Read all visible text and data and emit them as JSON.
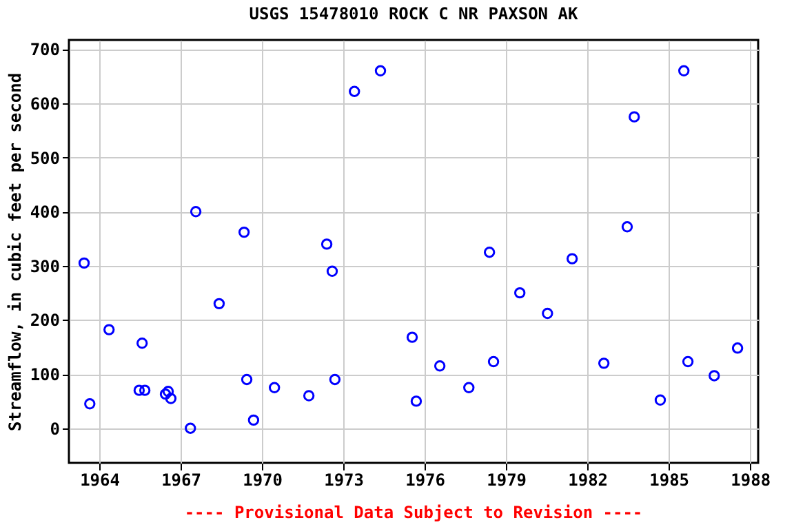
{
  "chart_data": {
    "type": "scatter",
    "title": "USGS 15478010 ROCK C NR PAXSON AK",
    "ylabel": "Streamflow, in cubic feet per second",
    "annotations": [
      "---- Provisional Data Subject to Revision ----"
    ],
    "x": [
      1963.44,
      1963.65,
      1964.36,
      1965.47,
      1965.58,
      1965.68,
      1966.44,
      1966.54,
      1966.64,
      1967.36,
      1967.56,
      1968.42,
      1969.34,
      1969.44,
      1969.69,
      1970.46,
      1971.73,
      1972.39,
      1972.59,
      1972.69,
      1973.41,
      1974.37,
      1975.54,
      1975.69,
      1976.56,
      1977.63,
      1978.39,
      1978.54,
      1979.51,
      1980.53,
      1981.44,
      1982.61,
      1983.47,
      1983.73,
      1984.69,
      1985.56,
      1985.71,
      1986.68,
      1987.54
    ],
    "series": [
      {
        "color": "#0000ff",
        "values": [
          305,
          45,
          182,
          70,
          157,
          70,
          63,
          68,
          55,
          0,
          400,
          230,
          362,
          90,
          15,
          75,
          60,
          340,
          290,
          90,
          622,
          660,
          168,
          50,
          115,
          75,
          325,
          123,
          250,
          212,
          313,
          120,
          372,
          575,
          52,
          660,
          123,
          97,
          148
        ]
      }
    ],
    "xlim": [
      1962.88,
      1988.3
    ],
    "xticks": [
      1964,
      1967,
      1970,
      1973,
      1976,
      1979,
      1982,
      1985,
      1988
    ],
    "ylim": [
      -64,
      717
    ],
    "yticks": [
      0,
      100,
      200,
      300,
      400,
      500,
      600,
      700
    ],
    "grid": true,
    "marker": "circle"
  }
}
